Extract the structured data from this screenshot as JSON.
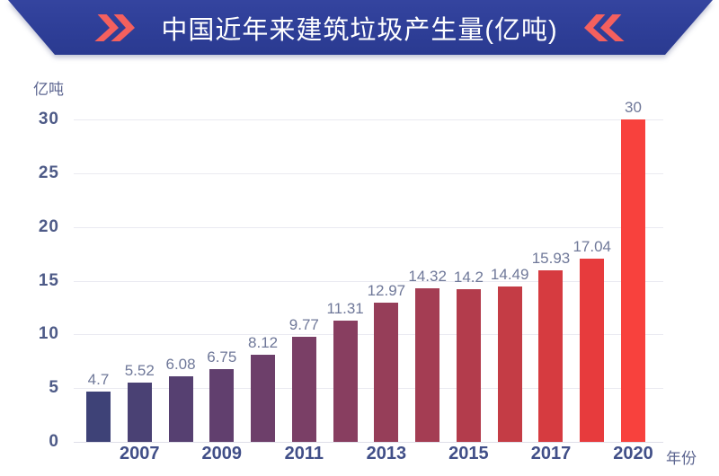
{
  "header": {
    "title": "中国近年来建筑垃圾产生量(亿吨)",
    "left_icon": "double-chevron-right",
    "right_icon": "double-chevron-left",
    "banner_color": "#2e3e97",
    "chevron_color": "#f4605e",
    "title_color": "#ffffff"
  },
  "chart_data": {
    "type": "bar",
    "title": "中国近年来建筑垃圾产生量(亿吨)",
    "y_unit_label": "亿吨",
    "xlabel": "年份",
    "categories": [
      "",
      "2007",
      "",
      "2009",
      "",
      "2011",
      "",
      "2013",
      "",
      "2015",
      "",
      "2017",
      "",
      "2020"
    ],
    "values": [
      4.7,
      5.52,
      6.08,
      6.75,
      8.12,
      9.77,
      11.31,
      12.97,
      14.32,
      14.2,
      14.49,
      15.93,
      17.04,
      30
    ],
    "value_labels": [
      "4.7",
      "5.52",
      "6.08",
      "6.75",
      "8.12",
      "9.77",
      "11.31",
      "12.97",
      "14.32",
      "14.2",
      "14.49",
      "15.93",
      "17.04",
      "30"
    ],
    "bar_colors": [
      "#3e4277",
      "#4a4174",
      "#564071",
      "#613f6e",
      "#6d3f6a",
      "#7a3f66",
      "#883e60",
      "#963e59",
      "#a43d53",
      "#b33c4c",
      "#c43c45",
      "#d63b40",
      "#e73b3d",
      "#f8413d"
    ],
    "yticks": [
      0,
      5,
      10,
      15,
      20,
      25,
      30
    ],
    "ylim": [
      0,
      30
    ],
    "grid": "horizontal",
    "gridline_color": "#eaeaf1",
    "ytick_color": "#4d5a87",
    "xtick_color": "#414f88",
    "value_label_color": "#6f7899"
  }
}
